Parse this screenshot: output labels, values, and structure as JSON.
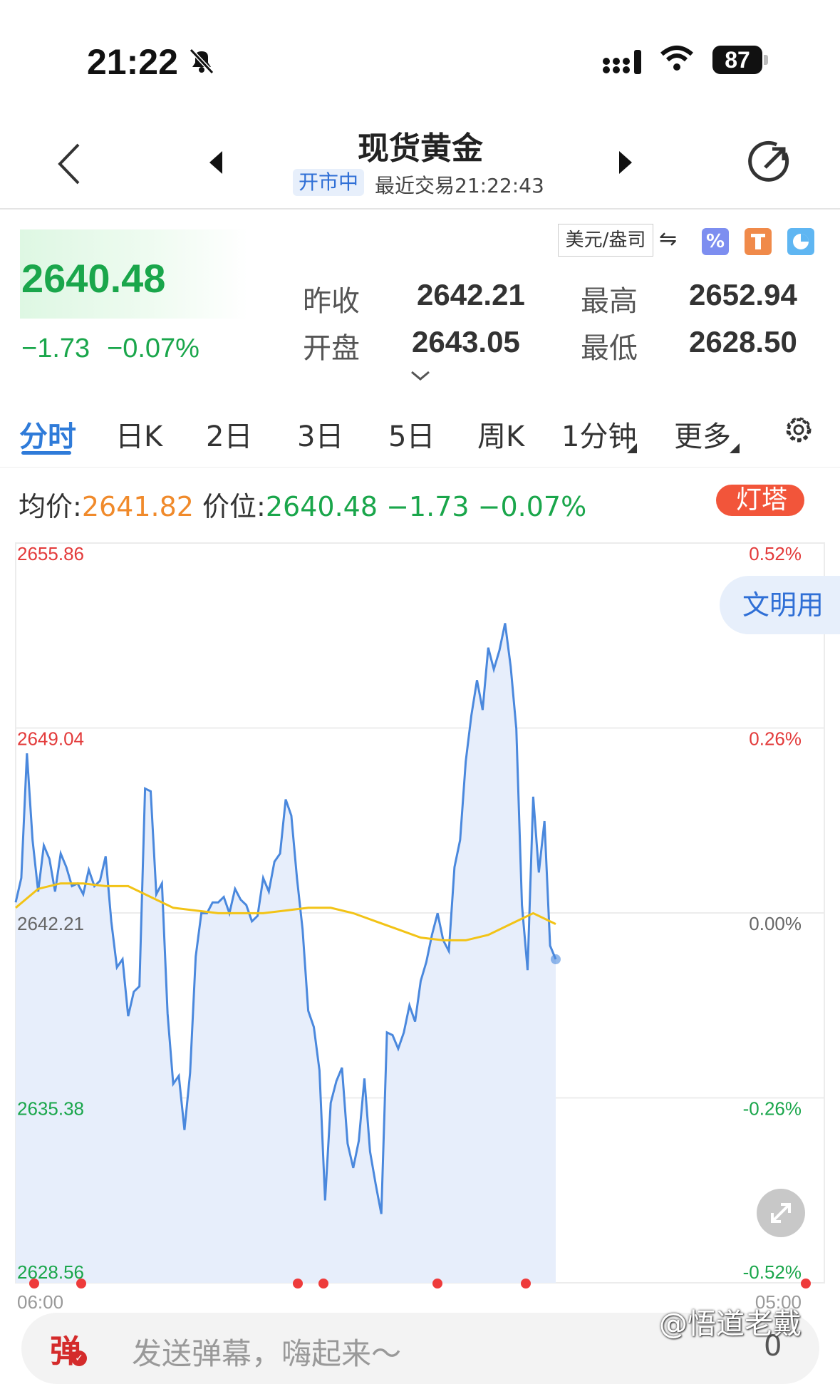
{
  "status_bar": {
    "time": "21:22",
    "battery": "87",
    "icons": [
      "bell-off-icon",
      "signal-icon",
      "wifi-icon",
      "battery-icon"
    ]
  },
  "header": {
    "title": "现货黄金",
    "status": "开市中",
    "last_trade": "最近交易21:22:43",
    "icons": [
      "back-arrow-icon",
      "prev-triangle-icon",
      "next-triangle-icon",
      "refresh-icon"
    ]
  },
  "quote": {
    "price": "2640.48",
    "change": "−1.73",
    "change_pct": "−0.07%",
    "unit": "美元/盎司",
    "swap": "⇋",
    "stats": [
      {
        "label": "昨收",
        "value": "2642.21"
      },
      {
        "label": "最高",
        "value": "2652.94"
      },
      {
        "label": "开盘",
        "value": "2643.05"
      },
      {
        "label": "最低",
        "value": "2628.50"
      }
    ],
    "tools": [
      "percent-icon",
      "tower-icon",
      "pie-icon"
    ]
  },
  "tabs": [
    "分时",
    "日K",
    "2日",
    "3日",
    "5日",
    "周K",
    "1分钟",
    "更多"
  ],
  "info": {
    "avg_label": "均价:",
    "avg_value": "2641.82",
    "price_label": "价位:",
    "price_value": "2640.48",
    "change": "−1.73",
    "pct": "−0.07%",
    "lighthouse": "灯塔"
  },
  "side_tag": "文明用",
  "colors": {
    "up": "#e33b3b",
    "down": "#1aa64b",
    "accent": "#2f7bd9",
    "line": "#4a88dd",
    "avg": "#f2c316"
  },
  "chart_data": {
    "type": "line",
    "y_left_labels": [
      "2655.86",
      "2649.04",
      "2642.21",
      "2635.38",
      "2628.56"
    ],
    "y_right_labels": [
      "0.52%",
      "0.26%",
      "0.00%",
      "-0.26%",
      "-0.52%"
    ],
    "x_labels": [
      "06:00",
      "05:00"
    ],
    "ylim": [
      2628.56,
      2655.86
    ],
    "series": [
      {
        "values": [
          2642.6,
          2643.5,
          2648.1,
          2644.9,
          2643.0,
          2644.7,
          2644.2,
          2643.0,
          2644.4,
          2643.9,
          2643.2,
          2643.3,
          2642.9,
          2643.8,
          2643.2,
          2643.4,
          2644.3,
          2641.9,
          2640.2,
          2640.5,
          2638.4,
          2639.3,
          2639.5,
          2646.8,
          2646.7,
          2642.9,
          2643.3,
          2638.5,
          2635.9,
          2636.2,
          2634.2,
          2636.3,
          2640.6,
          2642.2,
          2642.2,
          2642.6,
          2642.6,
          2642.8,
          2642.2,
          2643.1,
          2642.7,
          2642.5,
          2641.9,
          2642.1,
          2643.5,
          2643.0,
          2644.1,
          2644.4,
          2646.4,
          2645.8,
          2643.5,
          2641.6,
          2638.6,
          2638.0,
          2636.4,
          2631.6,
          2635.2,
          2636.0,
          2636.5,
          2633.7,
          2632.8,
          2633.8,
          2636.1,
          2633.4,
          2632.2,
          2631.1,
          2637.8,
          2637.7,
          2637.2,
          2637.8,
          2638.8,
          2638.2,
          2639.7,
          2640.4,
          2641.4,
          2642.2,
          2641.2,
          2640.8,
          2643.9,
          2644.9,
          2647.8,
          2649.5,
          2650.8,
          2649.7,
          2652.0,
          2651.2,
          2651.9,
          2652.9,
          2651.3,
          2649.0,
          2642.5,
          2640.1,
          2646.5,
          2643.7,
          2645.6,
          2641.0,
          2640.5
        ]
      },
      {
        "name": "均价",
        "values": [
          2642.4,
          2643.1,
          2643.3,
          2643.3,
          2643.2,
          2643.2,
          2642.8,
          2642.4,
          2642.3,
          2642.2,
          2642.2,
          2642.2,
          2642.3,
          2642.4,
          2642.4,
          2642.2,
          2641.9,
          2641.6,
          2641.3,
          2641.2,
          2641.2,
          2641.4,
          2641.8,
          2642.2,
          2641.8
        ]
      }
    ],
    "event_markers": [
      "06:00",
      "",
      "",
      "",
      "",
      "",
      ""
    ]
  },
  "danmu": {
    "tag": "弹",
    "placeholder": "发送弹幕，嗨起来～",
    "count": "0"
  },
  "watermark": "@悟道老戴"
}
